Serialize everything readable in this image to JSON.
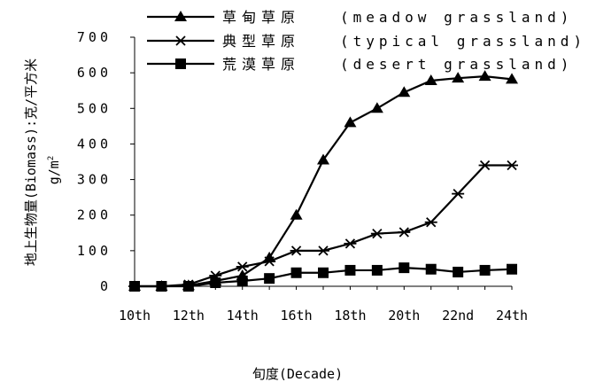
{
  "chart_data": {
    "type": "line",
    "xlabel": "旬度(Decade)",
    "ylabel": "地上生物量(Biomass):克/平方米",
    "ylabel_unit": "g/m",
    "ylabel_unit_sup": "2",
    "ylim": [
      0,
      700
    ],
    "yticks": [
      0,
      100,
      200,
      300,
      400,
      500,
      600,
      700
    ],
    "ytick_labels": [
      "0",
      "100",
      "200",
      "300",
      "400",
      "500",
      "600",
      "700"
    ],
    "x": [
      10,
      11,
      12,
      13,
      14,
      15,
      16,
      17,
      18,
      19,
      20,
      21,
      22,
      23,
      24
    ],
    "xticks": [
      10,
      12,
      14,
      16,
      18,
      20,
      22,
      24
    ],
    "xtick_labels": [
      "10th",
      "12th",
      "14th",
      "16th",
      "18th",
      "20th",
      "22nd",
      "24th"
    ],
    "grid": false,
    "legend_position": "top",
    "series": [
      {
        "name": "草甸草原",
        "name_en": "(meadow grassland)",
        "marker": "triangle",
        "values": [
          0,
          0,
          2,
          15,
          30,
          80,
          200,
          355,
          460,
          500,
          545,
          578,
          585,
          590,
          582
        ]
      },
      {
        "name": "典型草原",
        "name_en": "(typical grassland)",
        "marker": "asterisk",
        "values": [
          0,
          0,
          5,
          30,
          55,
          70,
          100,
          100,
          120,
          148,
          152,
          180,
          260,
          340,
          340
        ]
      },
      {
        "name": "荒漠草原",
        "name_en": "(desert grassland)",
        "marker": "square",
        "values": [
          0,
          0,
          0,
          10,
          15,
          22,
          38,
          38,
          45,
          45,
          52,
          48,
          40,
          45,
          48
        ]
      }
    ]
  }
}
